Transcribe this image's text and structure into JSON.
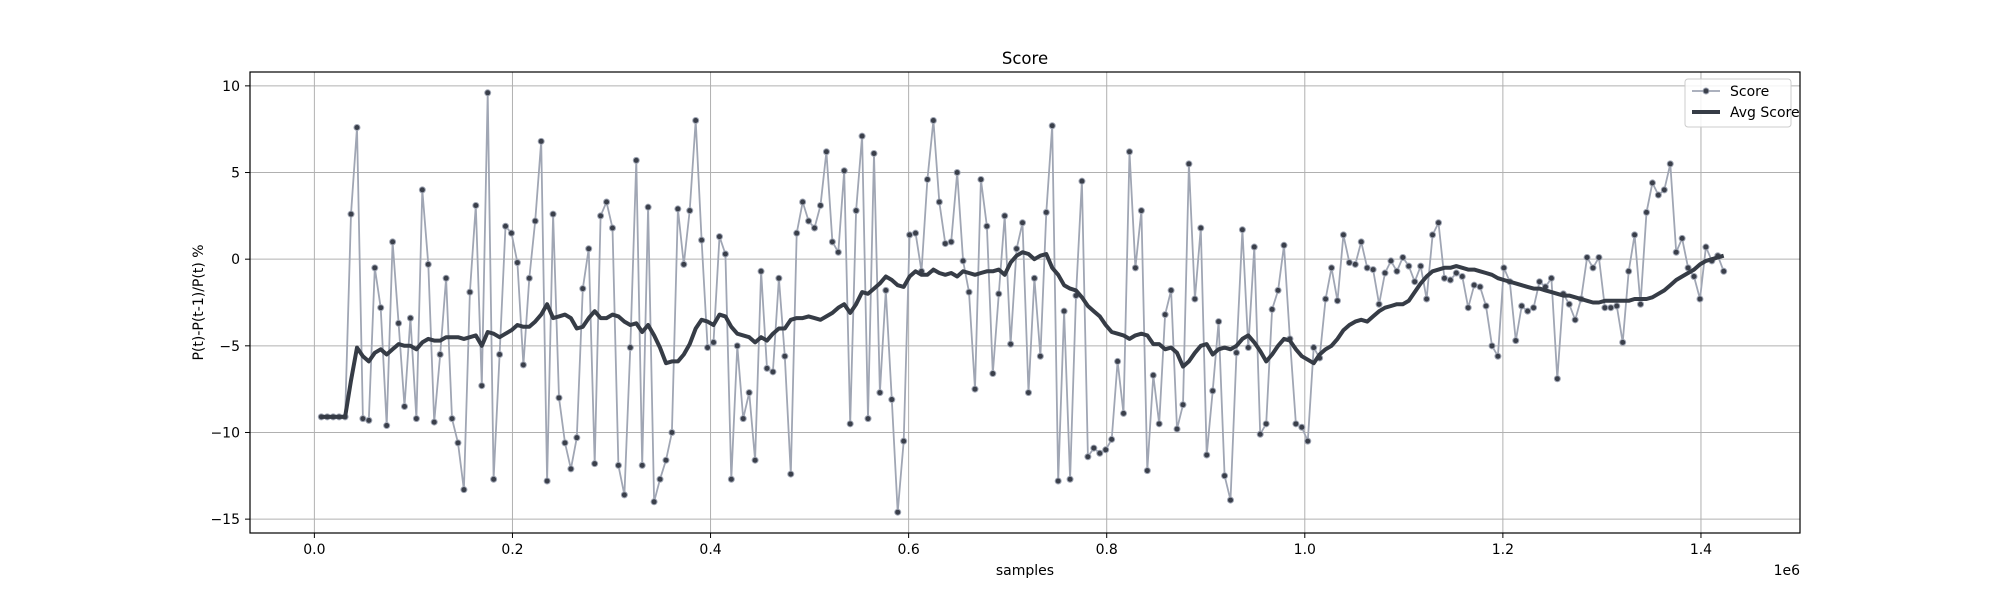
{
  "chart_data": {
    "type": "line",
    "title": "Score",
    "xlabel": "samples",
    "ylabel": "P(t)-P(t-1)/P(t) %",
    "x_offset_label": "1e6",
    "xlim": [
      -65000,
      1500000
    ],
    "ylim": [
      -15.8,
      10.8
    ],
    "x_ticks": [
      0,
      200000,
      400000,
      600000,
      800000,
      1000000,
      1200000,
      1400000
    ],
    "x_tick_labels": [
      "0.0",
      "0.2",
      "0.4",
      "0.6",
      "0.8",
      "1.0",
      "1.2",
      "1.4"
    ],
    "y_ticks": [
      -15,
      -10,
      -5,
      0,
      5,
      10
    ],
    "y_tick_labels": [
      "−15",
      "−10",
      "−5",
      "0",
      "5",
      "10"
    ],
    "grid": true,
    "legend_position": "top-right",
    "colors": {
      "score": "#a0a6b4",
      "marker": "#3a3f4a",
      "avg": "#363c46"
    },
    "series": [
      {
        "name": "Score",
        "values": [
          -9.1,
          -9.1,
          -9.1,
          -9.1,
          -9.1,
          2.6,
          7.6,
          -9.2,
          -9.3,
          -0.5,
          -2.8,
          -9.6,
          1.0,
          -3.7,
          -8.5,
          -3.4,
          -9.2,
          4.0,
          -0.3,
          -9.4,
          -5.5,
          -1.1,
          -9.2,
          -10.6,
          -13.3,
          -1.9,
          3.1,
          -7.3,
          9.6,
          -12.7,
          -5.5,
          1.9,
          1.5,
          -0.2,
          -6.1,
          -1.1,
          2.2,
          6.8,
          -12.8,
          2.6,
          -8.0,
          -10.6,
          -12.1,
          -10.3,
          -1.7,
          0.6,
          -11.8,
          2.5,
          3.3,
          1.8,
          -11.9,
          -13.6,
          -5.1,
          5.7,
          -11.9,
          3.0,
          -14.0,
          -12.7,
          -11.6,
          -10.0,
          2.9,
          -0.3,
          2.8,
          8.0,
          1.1,
          -5.1,
          -4.8,
          1.3,
          0.3,
          -12.7,
          -5.0,
          -9.2,
          -7.7,
          -11.6,
          -0.7,
          -6.3,
          -6.5,
          -1.1,
          -5.6,
          -12.4,
          1.5,
          3.3,
          2.2,
          1.8,
          3.1,
          6.2,
          1.0,
          0.4,
          5.1,
          -9.5,
          2.8,
          7.1,
          -9.2,
          6.1,
          -7.7,
          -1.8,
          -8.1,
          -14.6,
          -10.5,
          1.4,
          1.5,
          -0.7,
          4.6,
          8.0,
          3.3,
          0.9,
          1.0,
          5.0,
          -0.1,
          -1.9,
          -7.5,
          4.6,
          1.9,
          -6.6,
          -2.0,
          2.5,
          -4.9,
          0.6,
          2.1,
          -7.7,
          -1.1,
          -5.6,
          2.7,
          7.7,
          -12.8,
          -3.0,
          -12.7,
          -2.1,
          4.5,
          -11.4,
          -10.9,
          -11.2,
          -11.0,
          -10.4,
          -5.9,
          -8.9,
          6.2,
          -0.5,
          2.8,
          -12.2,
          -6.7,
          -9.5,
          -3.2,
          -1.8,
          -9.8,
          -8.4,
          5.5,
          -2.3,
          1.8,
          -11.3,
          -7.6,
          -3.6,
          -12.5,
          -13.9,
          -5.4,
          1.7,
          -5.1,
          0.7,
          -10.1,
          -9.5,
          -2.9,
          -1.8,
          0.8,
          -4.6,
          -9.5,
          -9.7,
          -10.5,
          -5.1,
          -5.7,
          -2.3,
          -0.5,
          -2.4,
          1.4,
          -0.2,
          -0.3,
          1.0,
          -0.5,
          -0.6,
          -2.6,
          -0.8,
          -0.1,
          -0.7,
          0.1,
          -0.4,
          -1.3,
          -0.4,
          -2.3,
          1.4,
          2.1,
          -1.1,
          -1.2,
          -0.8,
          -1.0,
          -2.8,
          -1.5,
          -1.6,
          -2.7,
          -5.0,
          -5.6,
          -0.5,
          -1.3,
          -4.7,
          -2.7,
          -3.0,
          -2.8,
          -1.3,
          -1.6,
          -1.1,
          -6.9,
          -2.0,
          -2.6,
          -3.5,
          -2.3,
          0.1,
          -0.5,
          0.1,
          -2.8,
          -2.8,
          -2.7,
          -4.8,
          -0.7,
          1.4,
          -2.6,
          2.7,
          4.4,
          3.7,
          4.0,
          5.5,
          0.4,
          1.2,
          -0.5,
          -1.0,
          -2.3,
          0.7,
          -0.1,
          0.2,
          -0.7
        ]
      },
      {
        "name": "Avg Score",
        "values": [
          -9.1,
          -9.1,
          -9.1,
          -9.1,
          -9.1,
          -7.0,
          -5.1,
          -5.6,
          -5.9,
          -5.4,
          -5.2,
          -5.5,
          -5.2,
          -4.9,
          -5.0,
          -5.0,
          -5.2,
          -4.8,
          -4.6,
          -4.7,
          -4.7,
          -4.5,
          -4.5,
          -4.5,
          -4.6,
          -4.5,
          -4.4,
          -5.0,
          -4.2,
          -4.3,
          -4.5,
          -4.3,
          -4.1,
          -3.8,
          -3.9,
          -3.9,
          -3.6,
          -3.2,
          -2.6,
          -3.4,
          -3.3,
          -3.2,
          -3.4,
          -4.0,
          -3.9,
          -3.4,
          -3.0,
          -3.4,
          -3.4,
          -3.2,
          -3.3,
          -3.6,
          -3.8,
          -3.7,
          -4.2,
          -3.8,
          -4.4,
          -5.1,
          -6.0,
          -5.9,
          -5.9,
          -5.5,
          -4.9,
          -4.0,
          -3.5,
          -3.6,
          -3.8,
          -3.2,
          -3.3,
          -3.9,
          -4.3,
          -4.4,
          -4.5,
          -4.8,
          -4.5,
          -4.7,
          -4.3,
          -4.0,
          -4.0,
          -3.5,
          -3.4,
          -3.4,
          -3.3,
          -3.4,
          -3.5,
          -3.3,
          -3.1,
          -2.8,
          -2.6,
          -3.1,
          -2.6,
          -1.9,
          -2.0,
          -1.7,
          -1.4,
          -1.0,
          -1.2,
          -1.5,
          -1.6,
          -1.0,
          -0.7,
          -0.9,
          -0.9,
          -0.6,
          -0.8,
          -0.9,
          -0.8,
          -1.0,
          -0.7,
          -0.8,
          -0.9,
          -0.8,
          -0.7,
          -0.7,
          -0.6,
          -0.9,
          -0.2,
          0.2,
          0.4,
          0.3,
          0.0,
          0.2,
          0.3,
          -0.5,
          -0.9,
          -1.5,
          -1.7,
          -1.8,
          -2.2,
          -2.7,
          -3.0,
          -3.3,
          -3.8,
          -4.2,
          -4.3,
          -4.4,
          -4.6,
          -4.4,
          -4.3,
          -4.4,
          -4.9,
          -4.9,
          -5.2,
          -5.1,
          -5.4,
          -6.2,
          -5.9,
          -5.4,
          -5.0,
          -4.9,
          -5.5,
          -5.2,
          -5.1,
          -5.2,
          -5.0,
          -4.6,
          -4.4,
          -4.8,
          -5.3,
          -5.9,
          -5.5,
          -5.0,
          -4.6,
          -4.7,
          -5.2,
          -5.6,
          -5.8,
          -6.0,
          -5.5,
          -5.2,
          -5.0,
          -4.6,
          -4.1,
          -3.8,
          -3.6,
          -3.5,
          -3.6,
          -3.3,
          -3.0,
          -2.8,
          -2.7,
          -2.6,
          -2.6,
          -2.4,
          -1.9,
          -1.4,
          -1.0,
          -0.7,
          -0.6,
          -0.5,
          -0.5,
          -0.4,
          -0.5,
          -0.6,
          -0.6,
          -0.7,
          -0.8,
          -0.9,
          -1.1,
          -1.2,
          -1.3,
          -1.4,
          -1.5,
          -1.6,
          -1.7,
          -1.7,
          -1.8,
          -1.9,
          -2.0,
          -2.1,
          -2.1,
          -2.2,
          -2.3,
          -2.4,
          -2.5,
          -2.5,
          -2.4,
          -2.4,
          -2.4,
          -2.4,
          -2.4,
          -2.3,
          -2.3,
          -2.3,
          -2.2,
          -2.0,
          -1.8,
          -1.5,
          -1.2,
          -1.0,
          -0.8,
          -0.6,
          -0.3,
          -0.1,
          0.0,
          0.1,
          0.2,
          0.2,
          0.2,
          0.2
        ]
      }
    ],
    "x_start": 7000,
    "x_step": 6000
  }
}
